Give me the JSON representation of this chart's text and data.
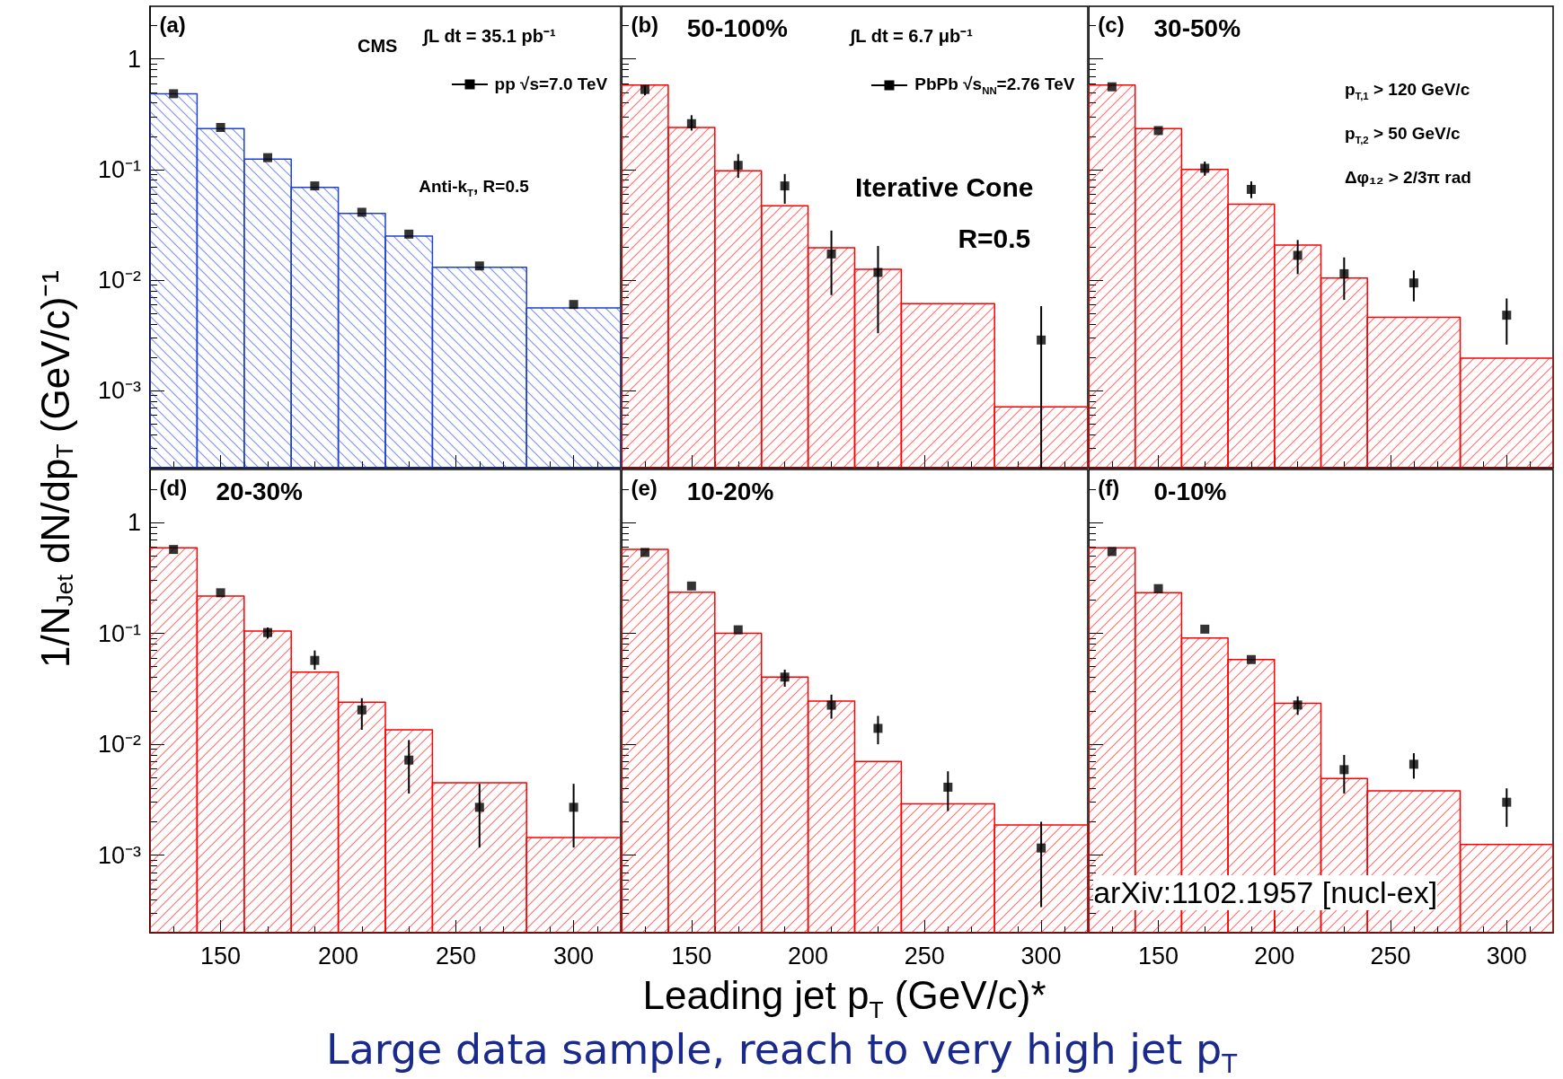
{
  "chart_data": [
    {
      "type": "histogram",
      "ylabel": "1/N$_{Jet}$ dN/dp$_{T}$ (GeV/c)⁻¹",
      "annotations": [
        "(a)",
        "CMS",
        "∫L dt = 35.1 pb⁻¹",
        "Anti-k$_{T}$, R=0.5"
      ],
      "xlim": [
        120,
        320
      ],
      "xticks": [
        150,
        200,
        250,
        300
      ],
      "ylim": [
        0.0002,
        3
      ],
      "yticks": [
        1,
        {
          "value": 0.1,
          "label": "10⁻¹"
        },
        {
          "value": 0.01,
          "label": "10⁻²"
        },
        {
          "value": 0.001,
          "label": "10⁻³"
        }
      ],
      "log": true,
      "tick_labels": "y",
      "legend": "top right",
      "marker": "square",
      "grid": false,
      "series": [
        {
          "color": "#1f3fd0",
          "bins": [
            120,
            140,
            160,
            180,
            200,
            220,
            240,
            280,
            320
          ],
          "values": [
            0.485,
            0.235,
            0.124,
            0.069,
            0.04,
            0.025,
            0.013,
            0.0056
          ]
        },
        {
          "type": "scatter",
          "name": "pp √s=7.0 TeV",
          "color": "#000000",
          "x": [
            130,
            150,
            170,
            190,
            210,
            230,
            260,
            300
          ],
          "values": [
            0.485,
            0.24,
            0.128,
            0.071,
            0.041,
            0.026,
            0.0134,
            0.006
          ]
        }
      ]
    },
    {
      "type": "histogram",
      "annotations": [
        "(b)",
        "50-100%",
        "∫L dt = 6.7 μb⁻¹",
        "Iterative Cone",
        "R=0.5"
      ],
      "xlim": [
        120,
        320
      ],
      "xticks": [
        150,
        200,
        250,
        300
      ],
      "ylim": [
        0.0002,
        3
      ],
      "yticks": [
        {
          "value": 1,
          "label": null
        },
        {
          "value": 0.1,
          "label": null
        },
        {
          "value": 0.01,
          "label": null
        },
        {
          "value": 0.001,
          "label": null
        }
      ],
      "log": true,
      "tick_labels": false,
      "legend": "top right",
      "marker": "square",
      "grid": false,
      "series": [
        {
          "color": "#ff0000",
          "bins": [
            120,
            140,
            160,
            180,
            200,
            220,
            240,
            280,
            320
          ],
          "values": [
            0.58,
            0.24,
            0.0975,
            0.047,
            0.0196,
            0.0125,
            0.0061,
            0.00071
          ]
        },
        {
          "type": "scatter",
          "name": "PbPb √s$_{NN}$=2.76 TeV",
          "color": "#000000",
          "x": [
            130,
            150,
            170,
            190,
            210,
            230,
            260,
            300
          ],
          "values": [
            0.53,
            0.26,
            0.109,
            0.071,
            0.0172,
            0.0117,
            null,
            0.00286
          ],
          "errors": [
            [
              0.47,
              0.58
            ],
            [
              0.225,
              0.31
            ],
            [
              0.084,
              0.138
            ],
            [
              0.049,
              0.091
            ],
            [
              0.0073,
              0.028
            ],
            [
              0.0033,
              0.0203
            ],
            null,
            [
              0.0002,
              0.0058
            ]
          ]
        }
      ]
    },
    {
      "type": "histogram",
      "annotations": [
        "(c)",
        "30-50%",
        "p$_{T,1}$ > 120 GeV/c",
        "p$_{T,2}$ > 50 GeV/c",
        "Δφ₁₂ > 2/3π rad"
      ],
      "xlim": [
        120,
        320
      ],
      "xticks": [
        150,
        200,
        250,
        300
      ],
      "ylim": [
        0.0002,
        3
      ],
      "yticks": [
        {
          "value": 1,
          "label": null
        },
        {
          "value": 0.1,
          "label": null
        },
        {
          "value": 0.01,
          "label": null
        },
        {
          "value": 0.001,
          "label": null
        }
      ],
      "log": true,
      "tick_labels": false,
      "marker": "square",
      "grid": false,
      "series": [
        {
          "color": "#ff0000",
          "bins": [
            120,
            140,
            160,
            180,
            200,
            220,
            240,
            280,
            320
          ],
          "values": [
            0.58,
            0.234,
            0.1,
            0.0486,
            0.0207,
            0.0104,
            0.0046,
            0.00196
          ]
        },
        {
          "type": "scatter",
          "color": "#000000",
          "x": [
            130,
            150,
            170,
            190,
            210,
            230,
            260,
            300
          ],
          "values": [
            0.56,
            0.225,
            0.1026,
            0.066,
            0.0167,
            0.0114,
            0.0094,
            0.0048
          ],
          "errors": [
            null,
            null,
            [
              0.088,
              0.118
            ],
            [
              0.055,
              0.078
            ],
            [
              0.0113,
              0.023
            ],
            [
              0.0066,
              0.016
            ],
            [
              0.0064,
              0.0122
            ],
            [
              0.0026,
              0.0068
            ]
          ]
        }
      ]
    },
    {
      "type": "histogram",
      "annotations": [
        "(d)",
        "20-30%"
      ],
      "xlim": [
        120,
        320
      ],
      "xticks": [
        150,
        200,
        250,
        300
      ],
      "ylim": [
        0.0002,
        3
      ],
      "yticks": [
        1,
        {
          "value": 0.1,
          "label": "10⁻¹"
        },
        {
          "value": 0.01,
          "label": "10⁻²"
        },
        {
          "value": 0.001,
          "label": "10⁻³"
        }
      ],
      "log": true,
      "marker": "square",
      "grid": false,
      "series": [
        {
          "color": "#ff0000",
          "bins": [
            120,
            140,
            160,
            180,
            200,
            220,
            240,
            280,
            320
          ],
          "values": [
            0.59,
            0.217,
            0.105,
            0.0446,
            0.0239,
            0.0135,
            0.0045,
            0.00144
          ]
        },
        {
          "type": "scatter",
          "color": "#000000",
          "x": [
            130,
            150,
            170,
            190,
            210,
            230,
            260,
            300
          ],
          "values": [
            0.57,
            0.232,
            0.1016,
            0.057,
            0.0204,
            0.0072,
            0.0027,
            0.0027
          ],
          "errors": [
            null,
            null,
            [
              0.09,
              0.113
            ],
            [
              0.047,
              0.07
            ],
            [
              0.0135,
              0.026
            ],
            [
              0.0036,
              0.0109
            ],
            [
              0.00117,
              0.0044
            ],
            [
              0.00117,
              0.0044
            ]
          ]
        }
      ]
    },
    {
      "type": "histogram",
      "xlabel": "Leading jet p$_{T}$ (GeV/c)*",
      "annotations": [
        "(e)",
        "10-20%",
        "Large data sample, reach to very high jet p$_{T}$"
      ],
      "xlim": [
        120,
        320
      ],
      "xticks": [
        150,
        200,
        250,
        300
      ],
      "ylim": [
        0.0002,
        3
      ],
      "yticks": [
        {
          "value": 1,
          "label": null
        },
        {
          "value": 0.1,
          "label": null
        },
        {
          "value": 0.01,
          "label": null
        },
        {
          "value": 0.001,
          "label": null
        }
      ],
      "log": true,
      "tick_labels": "x",
      "marker": "square",
      "grid": false,
      "series": [
        {
          "color": "#ff0000",
          "bins": [
            120,
            140,
            160,
            180,
            200,
            220,
            240,
            280,
            320
          ],
          "values": [
            0.57,
            0.235,
            0.1,
            0.0403,
            0.0245,
            0.007,
            0.0029,
            0.00187
          ]
        },
        {
          "type": "scatter",
          "color": "#000000",
          "x": [
            130,
            150,
            170,
            190,
            210,
            230,
            260,
            300
          ],
          "values": [
            0.536,
            0.267,
            0.1076,
            0.0403,
            0.0225,
            0.0139,
            0.0041,
            0.00116
          ],
          "errors": [
            null,
            null,
            null,
            [
              0.033,
              0.047
            ],
            [
              0.017,
              0.028
            ],
            [
              0.01,
              0.018
            ],
            [
              0.0025,
              0.0057
            ],
            [
              0.00034,
              0.002
            ]
          ]
        }
      ]
    },
    {
      "type": "histogram",
      "annotations": [
        "(f)",
        "0-10%",
        "arXiv:1102.1957 [nucl-ex]"
      ],
      "xlim": [
        120,
        320
      ],
      "xticks": [
        150,
        200,
        250,
        300
      ],
      "ylim": [
        0.0002,
        3
      ],
      "yticks": [
        {
          "value": 1,
          "label": null
        },
        {
          "value": 0.1,
          "label": null
        },
        {
          "value": 0.01,
          "label": null
        },
        {
          "value": 0.001,
          "label": null
        }
      ],
      "log": true,
      "tick_labels": "x",
      "marker": "square",
      "grid": false,
      "series": [
        {
          "color": "#ff0000",
          "bins": [
            120,
            140,
            160,
            180,
            200,
            220,
            240,
            280,
            320
          ],
          "values": [
            0.59,
            0.232,
            0.0908,
            0.058,
            0.0234,
            0.0049,
            0.0038,
            0.00125
          ]
        },
        {
          "type": "scatter",
          "color": "#000000",
          "x": [
            130,
            150,
            170,
            190,
            210,
            230,
            260,
            300
          ],
          "values": [
            0.546,
            0.253,
            0.109,
            0.058,
            0.0226,
            0.0059,
            0.0066,
            0.003
          ],
          "errors": [
            null,
            null,
            null,
            null,
            [
              0.0184,
              0.027
            ],
            [
              0.0036,
              0.008
            ],
            [
              0.0049,
              0.0083
            ],
            [
              0.0018,
              0.004
            ]
          ]
        }
      ]
    }
  ]
}
